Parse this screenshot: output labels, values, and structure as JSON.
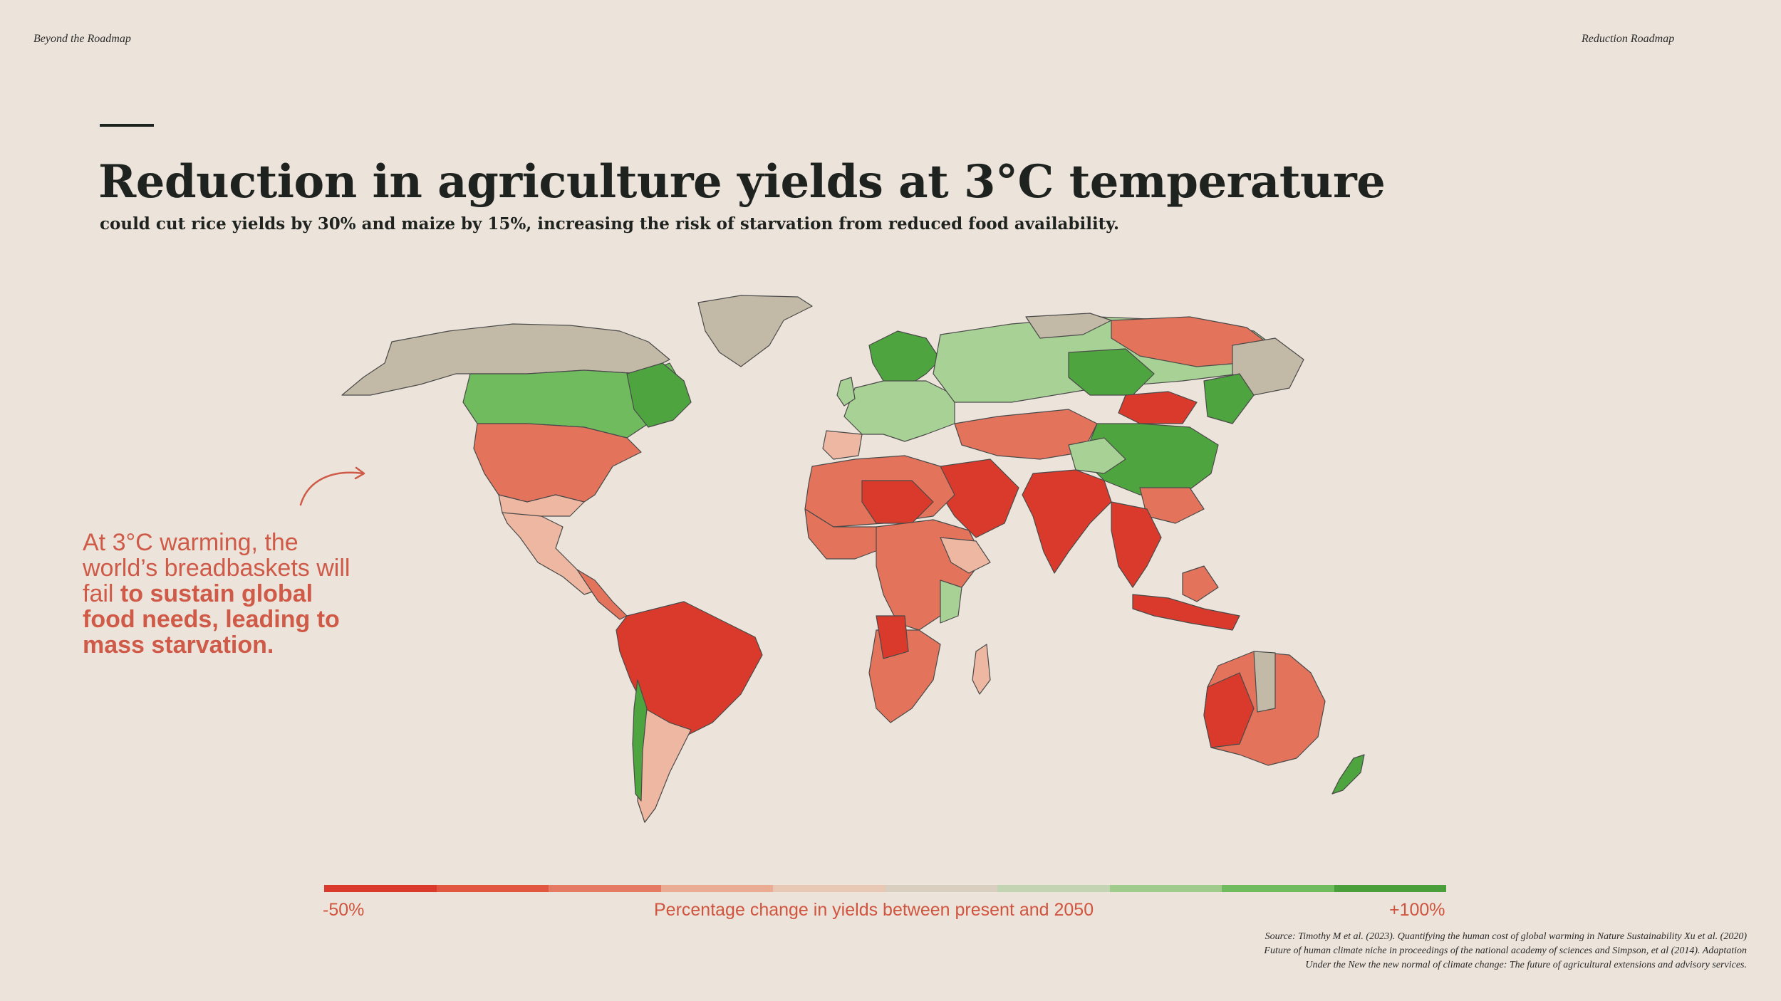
{
  "header": {
    "left": "Beyond the Roadmap",
    "right": "Reduction Roadmap"
  },
  "title": "Reduction in agriculture yields at 3°C temperature",
  "subtitle": "could cut rice yields by 30% and maize by 15%, increasing the risk of starvation from reduced food availability.",
  "callout": {
    "normal": "At 3°C warming, the world’s breadbaskets will fail ",
    "bold": "to sustain global food needs, leading to mass starvation."
  },
  "legend": {
    "min_label": "-50%",
    "max_label": "+100%",
    "caption": "Percentage change in yields between present and 2050",
    "min_value": -50,
    "max_value": 100,
    "colors": [
      "#d93a2b",
      "#e0563f",
      "#e47a62",
      "#ebaa92",
      "#e8c7b4",
      "#d9cfc0",
      "#c2d4b1",
      "#9fcc8c",
      "#6fbb5e",
      "#4a9f3b"
    ]
  },
  "map_colors": {
    "land_no_data": "#c2b9a7",
    "strong_decline": "#d93a2b",
    "moderate_decline": "#e4735c",
    "mild_decline": "#edb7a1",
    "mild_increase": "#a8d195",
    "strong_increase": "#4ea43e",
    "coast": "#4a4a4a"
  },
  "source": {
    "line1": "Source: Timothy M et al. (2023). Quantifying the human cost of global warming in Nature Sustainability Xu et al. (2020)",
    "line2": "Future of human climate niche in proceedings of the national academy of sciences  and Simpson, et al (2014). Adaptation",
    "line3": "Under the New the new normal of climate change: The future of agricultural extensions and advisory services."
  }
}
